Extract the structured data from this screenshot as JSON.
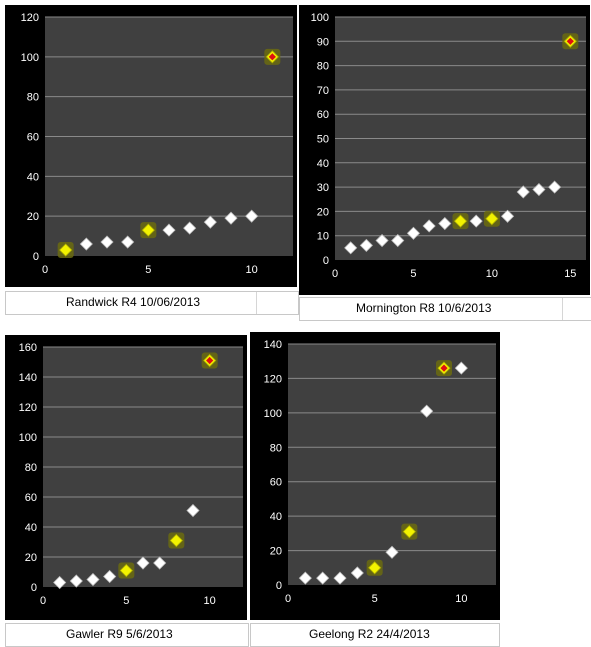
{
  "colors": {
    "background": "#000000",
    "plot": "#404040",
    "grid": "#8a8a8a",
    "tick": "#ffffff",
    "white_marker": "#ffffff",
    "yellow_marker": "#f2f200",
    "red_marker": "#e01010",
    "glow": "#6b6b10"
  },
  "chart_data": [
    {
      "type": "scatter",
      "caption": "Randwick R4 10/06/2013",
      "xlim": [
        0,
        12
      ],
      "ylim": [
        0,
        120
      ],
      "xticks": [
        0,
        5,
        10
      ],
      "yticks": [
        0,
        20,
        40,
        60,
        80,
        100,
        120
      ],
      "grid": "horizontal",
      "points": [
        {
          "x": 1,
          "y": 3,
          "color": "yellow"
        },
        {
          "x": 2,
          "y": 6,
          "color": "white"
        },
        {
          "x": 3,
          "y": 7,
          "color": "white"
        },
        {
          "x": 4,
          "y": 7,
          "color": "white"
        },
        {
          "x": 5,
          "y": 13,
          "color": "yellow"
        },
        {
          "x": 6,
          "y": 13,
          "color": "white"
        },
        {
          "x": 7,
          "y": 14,
          "color": "white"
        },
        {
          "x": 8,
          "y": 17,
          "color": "white"
        },
        {
          "x": 9,
          "y": 19,
          "color": "white"
        },
        {
          "x": 10,
          "y": 20,
          "color": "white"
        },
        {
          "x": 11,
          "y": 100,
          "color": "red"
        }
      ]
    },
    {
      "type": "scatter",
      "caption": "Mornington R8 10/6/2013",
      "xlim": [
        0,
        16
      ],
      "ylim": [
        0,
        100
      ],
      "xticks": [
        0,
        5,
        10,
        15
      ],
      "yticks": [
        0,
        10,
        20,
        30,
        40,
        50,
        60,
        70,
        80,
        90,
        100
      ],
      "grid": "horizontal",
      "points": [
        {
          "x": 1,
          "y": 5,
          "color": "white"
        },
        {
          "x": 2,
          "y": 6,
          "color": "white"
        },
        {
          "x": 3,
          "y": 8,
          "color": "white"
        },
        {
          "x": 4,
          "y": 8,
          "color": "white"
        },
        {
          "x": 5,
          "y": 11,
          "color": "white"
        },
        {
          "x": 6,
          "y": 14,
          "color": "white"
        },
        {
          "x": 7,
          "y": 15,
          "color": "white"
        },
        {
          "x": 8,
          "y": 16,
          "color": "yellow"
        },
        {
          "x": 9,
          "y": 16,
          "color": "white"
        },
        {
          "x": 10,
          "y": 17,
          "color": "yellow"
        },
        {
          "x": 11,
          "y": 18,
          "color": "white"
        },
        {
          "x": 12,
          "y": 28,
          "color": "white"
        },
        {
          "x": 13,
          "y": 29,
          "color": "white"
        },
        {
          "x": 14,
          "y": 30,
          "color": "white"
        },
        {
          "x": 15,
          "y": 90,
          "color": "red"
        }
      ]
    },
    {
      "type": "scatter",
      "caption": "Gawler R9 5/6/2013",
      "xlim": [
        0,
        12
      ],
      "ylim": [
        0,
        160
      ],
      "xticks": [
        0,
        5,
        10
      ],
      "yticks": [
        0,
        20,
        40,
        60,
        80,
        100,
        120,
        140,
        160
      ],
      "grid": "horizontal",
      "points": [
        {
          "x": 1,
          "y": 3,
          "color": "white"
        },
        {
          "x": 2,
          "y": 4,
          "color": "white"
        },
        {
          "x": 3,
          "y": 5,
          "color": "white"
        },
        {
          "x": 4,
          "y": 7,
          "color": "white"
        },
        {
          "x": 5,
          "y": 11,
          "color": "yellow"
        },
        {
          "x": 6,
          "y": 16,
          "color": "white"
        },
        {
          "x": 7,
          "y": 16,
          "color": "white"
        },
        {
          "x": 8,
          "y": 31,
          "color": "yellow"
        },
        {
          "x": 9,
          "y": 51,
          "color": "white"
        },
        {
          "x": 10,
          "y": 151,
          "color": "red"
        }
      ]
    },
    {
      "type": "scatter",
      "caption": "Geelong R2  24/4/2013",
      "xlim": [
        0,
        12
      ],
      "ylim": [
        0,
        140
      ],
      "xticks": [
        0,
        5,
        10
      ],
      "yticks": [
        0,
        20,
        40,
        60,
        80,
        100,
        120,
        140
      ],
      "grid": "horizontal",
      "points": [
        {
          "x": 1,
          "y": 4,
          "color": "white"
        },
        {
          "x": 2,
          "y": 4,
          "color": "white"
        },
        {
          "x": 3,
          "y": 4,
          "color": "white"
        },
        {
          "x": 4,
          "y": 7,
          "color": "white"
        },
        {
          "x": 5,
          "y": 10,
          "color": "yellow"
        },
        {
          "x": 6,
          "y": 19,
          "color": "white"
        },
        {
          "x": 7,
          "y": 31,
          "color": "yellow"
        },
        {
          "x": 8,
          "y": 101,
          "color": "white"
        },
        {
          "x": 9,
          "y": 126,
          "color": "red"
        },
        {
          "x": 10,
          "y": 126,
          "color": "white"
        }
      ]
    }
  ]
}
